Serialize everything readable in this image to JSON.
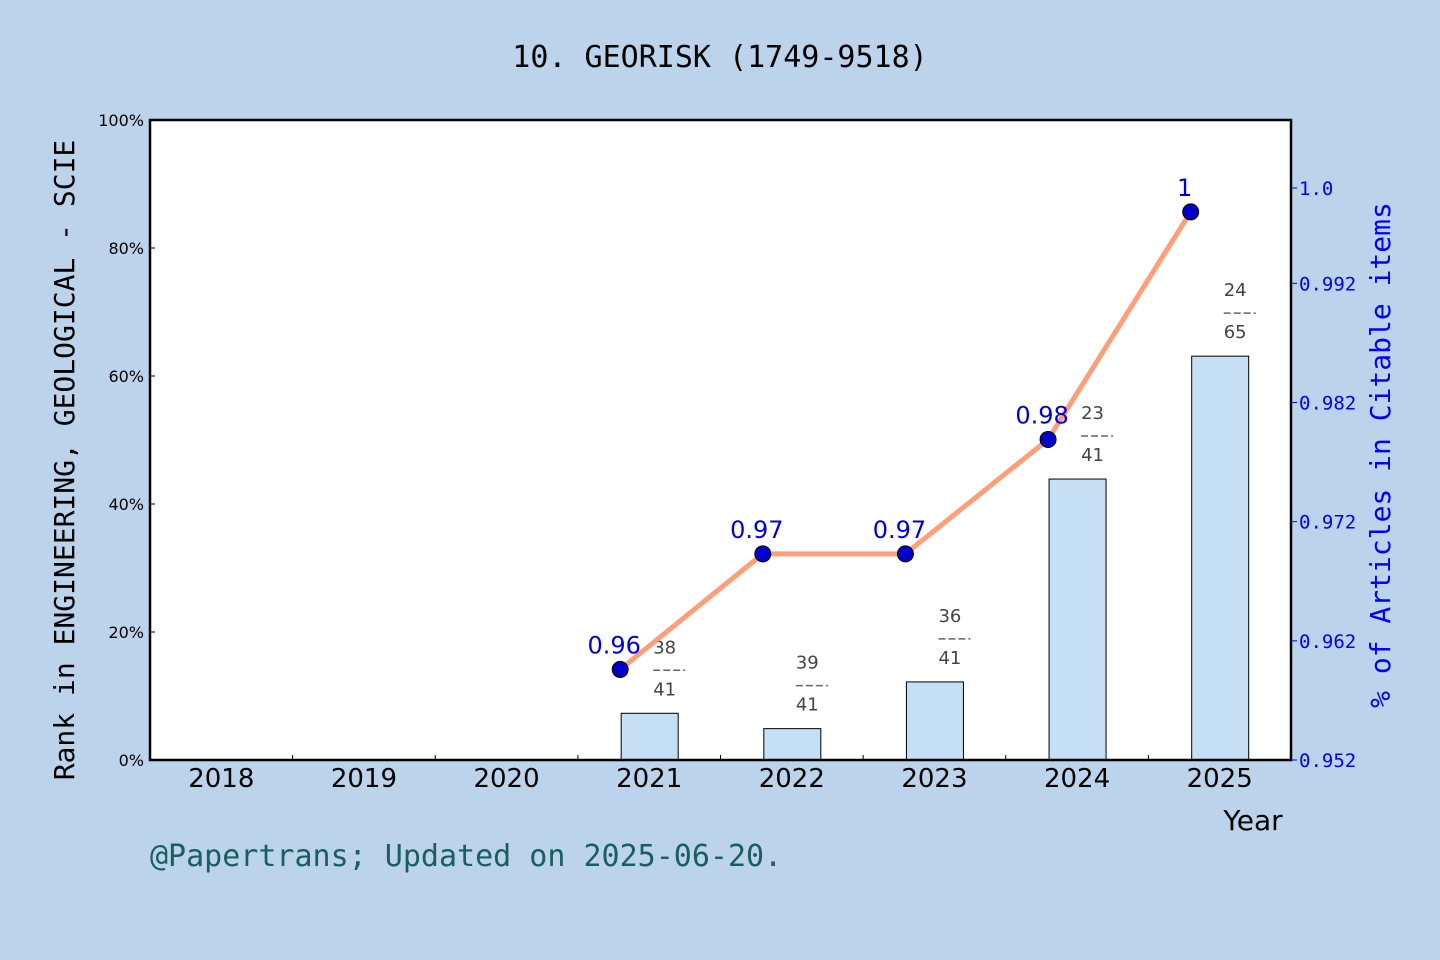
{
  "chart_data": {
    "type": "bar",
    "title": "10. GEORISK (1749-9518)",
    "xlabel": "Year",
    "ylabel": "Rank in ENGINEERING, GEOLOGICAL - SCIE",
    "y2label": "% of Articles in Citable items",
    "categories": [
      "2018",
      "2019",
      "2020",
      "2021",
      "2022",
      "2023",
      "2024",
      "2025"
    ],
    "ylim": [
      0,
      100
    ],
    "yticks": [
      "0%",
      "20%",
      "40%",
      "60%",
      "80%",
      "100%"
    ],
    "y2lim": [
      0.952,
      1.0
    ],
    "y2ticks": [
      "0.952",
      "0.962",
      "0.972",
      "0.982",
      "0.992",
      "1.0"
    ],
    "bars": [
      {
        "year": "2021",
        "value": 7.3,
        "rank": "38",
        "total": "41"
      },
      {
        "year": "2022",
        "value": 4.9,
        "rank": "39",
        "total": "41"
      },
      {
        "year": "2023",
        "value": 12.2,
        "rank": "36",
        "total": "41"
      },
      {
        "year": "2024",
        "value": 43.9,
        "rank": "23",
        "total": "41"
      },
      {
        "year": "2025",
        "value": 63.1,
        "rank": "24",
        "total": "65"
      }
    ],
    "line": [
      {
        "year": "2021",
        "value": 0.9596,
        "label": "0.96"
      },
      {
        "year": "2022",
        "value": 0.9693,
        "label": "0.97"
      },
      {
        "year": "2023",
        "value": 0.9693,
        "label": "0.97"
      },
      {
        "year": "2024",
        "value": 0.9789,
        "label": "0.98"
      },
      {
        "year": "2025",
        "value": 0.998,
        "label": "1"
      }
    ],
    "colors": {
      "bar": "#c5dff5",
      "line": "#ff9f7a",
      "marker": "#0000c8",
      "right_axis": "#0000ff",
      "background": "#bcd3ec"
    },
    "grid": false
  },
  "footer": "@Papertrans; Updated on 2025-06-20."
}
